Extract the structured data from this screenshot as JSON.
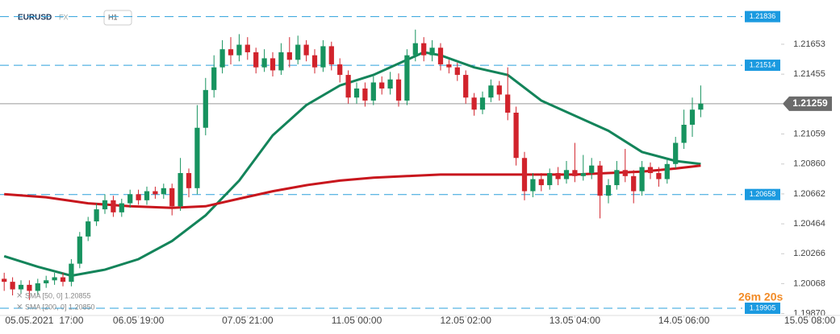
{
  "chart_data": {
    "type": "candlestick",
    "symbol": "EURUSD",
    "market": "FX",
    "interval": "H1",
    "countdown": "26m 20s",
    "up_color": "#17935f",
    "down_color": "#d1232c",
    "open": [
      1.201,
      1.2008,
      1.2003,
      1.2006,
      1.2002,
      1.2007,
      1.2009,
      1.2011,
      1.2008,
      1.202,
      1.2038,
      1.2048,
      1.2056,
      1.2062,
      1.2054,
      1.206,
      1.2066,
      1.2062,
      1.2068,
      1.2066,
      1.207,
      1.2058,
      1.208,
      1.207,
      1.211,
      1.2135,
      1.215,
      1.2162,
      1.2158,
      1.2165,
      1.216,
      1.215,
      1.2156,
      1.2148,
      1.216,
      1.2155,
      1.2165,
      1.2158,
      1.215,
      1.2164,
      1.2152,
      1.2145,
      1.213,
      1.2136,
      1.2128,
      1.214,
      1.2136,
      1.2142,
      1.2128,
      1.2158,
      1.2166,
      1.2158,
      1.2163,
      1.2152,
      1.215,
      1.2145,
      1.213,
      1.2122,
      1.213,
      1.2138,
      1.2132,
      1.212,
      1.209,
      1.2068,
      1.2076,
      1.2072,
      1.208,
      1.2076,
      1.2082,
      1.2078,
      1.208,
      1.2085,
      1.2065,
      1.2072,
      1.2082,
      1.2078,
      1.2068,
      1.2084,
      1.208,
      1.2076,
      1.2086,
      1.21,
      1.2112,
      1.2122
    ],
    "high": [
      1.2014,
      1.2011,
      1.2009,
      1.2009,
      1.201,
      1.2012,
      1.2014,
      1.2014,
      1.2023,
      1.2041,
      1.2051,
      1.206,
      1.2066,
      1.2065,
      1.2063,
      1.2069,
      1.2069,
      1.2071,
      1.2071,
      1.2073,
      1.2073,
      1.209,
      1.2083,
      1.2125,
      1.2143,
      1.2158,
      1.2168,
      1.217,
      1.2172,
      1.217,
      1.2163,
      1.2162,
      1.216,
      1.2166,
      1.217,
      1.2171,
      1.2168,
      1.2162,
      1.2168,
      1.2167,
      1.2156,
      1.2148,
      1.214,
      1.214,
      1.2144,
      1.2144,
      1.2147,
      1.2146,
      1.2162,
      1.2175,
      1.217,
      1.2168,
      1.2166,
      1.2155,
      1.2153,
      1.2148,
      1.2133,
      1.2134,
      1.2142,
      1.2141,
      1.215,
      1.2124,
      1.2094,
      1.208,
      1.208,
      1.2083,
      1.2084,
      1.2088,
      1.21,
      1.2092,
      1.209,
      1.2088,
      1.2076,
      1.2088,
      1.2096,
      1.2082,
      1.2088,
      1.2087,
      1.2084,
      1.209,
      1.2104,
      1.2122,
      1.213,
      1.2138
    ],
    "low": [
      1.2002,
      1.1999,
      1.2,
      1.1996,
      1.1999,
      1.2004,
      1.2006,
      1.2005,
      1.2005,
      1.2017,
      1.2035,
      1.2045,
      1.2053,
      1.2051,
      1.2051,
      1.2057,
      1.2059,
      1.2059,
      1.2063,
      1.2063,
      1.2052,
      1.2055,
      1.2064,
      1.2066,
      1.2105,
      1.213,
      1.2146,
      1.2152,
      1.2154,
      1.2155,
      1.2146,
      1.2147,
      1.2144,
      1.2145,
      1.215,
      1.2152,
      1.2154,
      1.2146,
      1.2147,
      1.2148,
      1.214,
      1.2126,
      1.2126,
      1.2124,
      1.2125,
      1.2132,
      1.2132,
      1.2124,
      1.2125,
      1.2154,
      1.2154,
      1.2154,
      1.2148,
      1.2146,
      1.2141,
      1.2126,
      1.2118,
      1.2119,
      1.2127,
      1.2128,
      1.2115,
      1.2085,
      1.2062,
      1.2064,
      1.2068,
      1.2069,
      1.2072,
      1.2073,
      1.2074,
      1.2075,
      1.2076,
      1.205,
      1.206,
      1.2069,
      1.2074,
      1.206,
      1.2065,
      1.2076,
      1.2071,
      1.2073,
      1.2083,
      1.2096,
      1.2104,
      1.2117
    ],
    "close": [
      1.2008,
      1.2003,
      1.2006,
      1.2002,
      1.2007,
      1.2009,
      1.2011,
      1.2008,
      1.202,
      1.2038,
      1.2048,
      1.2056,
      1.2062,
      1.2054,
      1.206,
      1.2066,
      1.2062,
      1.2068,
      1.2066,
      1.207,
      1.2058,
      1.208,
      1.207,
      1.211,
      1.2135,
      1.215,
      1.2162,
      1.2158,
      1.2165,
      1.216,
      1.215,
      1.2156,
      1.2148,
      1.216,
      1.2155,
      1.2165,
      1.2158,
      1.215,
      1.2164,
      1.2152,
      1.2145,
      1.213,
      1.2136,
      1.2128,
      1.214,
      1.2136,
      1.2142,
      1.2128,
      1.2158,
      1.2166,
      1.2158,
      1.2163,
      1.2152,
      1.215,
      1.2145,
      1.213,
      1.2122,
      1.213,
      1.2138,
      1.2132,
      1.212,
      1.209,
      1.2068,
      1.2076,
      1.2072,
      1.208,
      1.2076,
      1.2082,
      1.2078,
      1.208,
      1.2085,
      1.2065,
      1.2072,
      1.2082,
      1.2078,
      1.2068,
      1.2084,
      1.208,
      1.2076,
      1.2086,
      1.21,
      1.2112,
      1.2122,
      1.2126
    ],
    "series": [
      {
        "name": "SMA [50, 0] 1.20855",
        "color": "#13845a",
        "x": [
          0,
          4,
          8,
          12,
          16,
          20,
          24,
          28,
          32,
          36,
          40,
          44,
          48,
          50,
          52,
          56,
          60,
          64,
          68,
          72,
          76,
          80,
          83
        ],
        "values": [
          1.2025,
          1.2018,
          1.2012,
          1.2016,
          1.2023,
          1.2035,
          1.2052,
          1.2075,
          1.2105,
          1.2125,
          1.2138,
          1.2145,
          1.2155,
          1.216,
          1.2158,
          1.215,
          1.2145,
          1.2128,
          1.2118,
          1.2108,
          1.2094,
          1.2088,
          1.2086
        ]
      },
      {
        "name": "SMA [200, 0] 1.20850",
        "color": "#c8161d",
        "x": [
          0,
          5,
          10,
          15,
          20,
          24,
          28,
          32,
          36,
          40,
          44,
          48,
          52,
          56,
          60,
          64,
          68,
          72,
          76,
          80,
          83
        ],
        "values": [
          1.2066,
          1.2064,
          1.206,
          1.2058,
          1.2057,
          1.2058,
          1.2063,
          1.2068,
          1.2072,
          1.2075,
          1.2077,
          1.2078,
          1.2079,
          1.2079,
          1.2079,
          1.2079,
          1.2079,
          1.208,
          1.2081,
          1.2083,
          1.2085
        ]
      }
    ],
    "levels": [
      1.21836,
      1.21514,
      1.20658,
      1.19905
    ],
    "current_price": 1.21259,
    "ylim": [
      1.19857,
      1.21946
    ],
    "yticks": [
      1.21653,
      1.21455,
      1.21059,
      {
        "value": 1.2086,
        "label": "1.20860"
      },
      1.20662,
      1.20464,
      1.20266,
      1.20068,
      {
        "value": 1.1987,
        "label": "1.19870"
      }
    ],
    "xlim": [
      -0.5,
      99.5
    ],
    "xticks": [
      {
        "value": 3,
        "label": "05.05.2021"
      },
      {
        "value": 8,
        "label": "17:00"
      },
      {
        "value": 16,
        "label": "06.05 19:00"
      },
      {
        "value": 29,
        "label": "07.05 21:00"
      },
      {
        "value": 42,
        "label": "11.05 00:00"
      },
      {
        "value": 55,
        "label": "12.05 02:00"
      },
      {
        "value": 68,
        "label": "13.05 04:00"
      },
      {
        "value": 81,
        "label": "14.05 06:00"
      },
      {
        "value": 96,
        "label": "15.05 08:00"
      }
    ]
  }
}
